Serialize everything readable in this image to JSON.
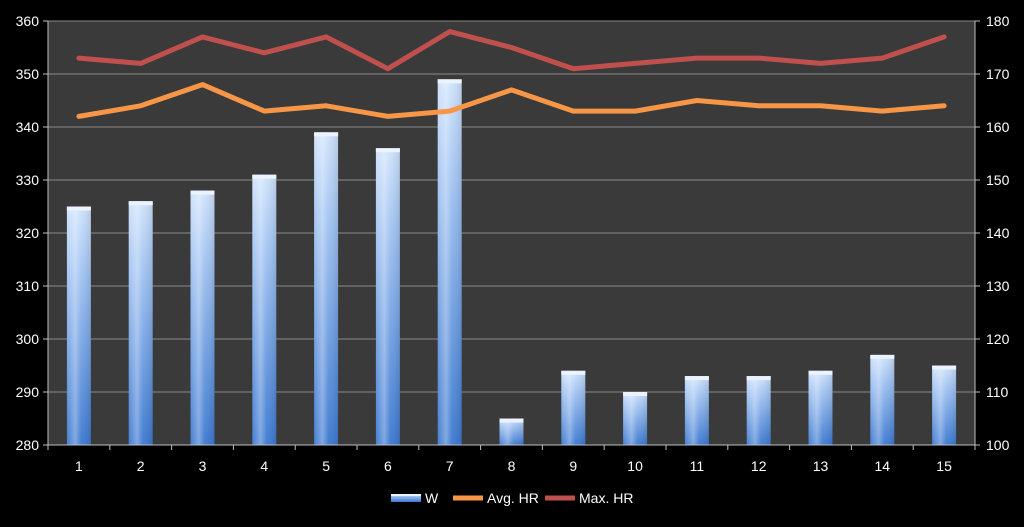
{
  "chart_data": {
    "type": "bar",
    "categories": [
      "1",
      "2",
      "3",
      "4",
      "5",
      "6",
      "7",
      "8",
      "9",
      "10",
      "11",
      "12",
      "13",
      "14",
      "15"
    ],
    "y_left": {
      "lim": [
        280,
        360
      ],
      "ticks": [
        280,
        290,
        300,
        310,
        320,
        330,
        340,
        350,
        360
      ]
    },
    "y_right": {
      "lim": [
        100,
        180
      ],
      "ticks": [
        100,
        110,
        120,
        130,
        140,
        150,
        160,
        170,
        180
      ]
    },
    "grid": true,
    "legend_position": "bottom",
    "series": [
      {
        "name": "W",
        "type": "bar",
        "axis": "left",
        "color": "#4a86d8",
        "values": [
          325,
          326,
          328,
          331,
          339,
          336,
          349,
          285,
          294,
          290,
          293,
          293,
          294,
          297,
          295
        ]
      },
      {
        "name": "Avg. HR",
        "type": "line",
        "axis": "right",
        "color": "#f79646",
        "values": [
          162,
          164,
          168,
          163,
          164,
          162,
          163,
          167,
          163,
          163,
          165,
          164,
          164,
          163,
          164
        ]
      },
      {
        "name": "Max. HR",
        "type": "line",
        "axis": "right",
        "color": "#c0504d",
        "values": [
          173,
          172,
          177,
          174,
          177,
          171,
          178,
          175,
          171,
          172,
          173,
          173,
          172,
          173,
          177
        ]
      }
    ]
  }
}
